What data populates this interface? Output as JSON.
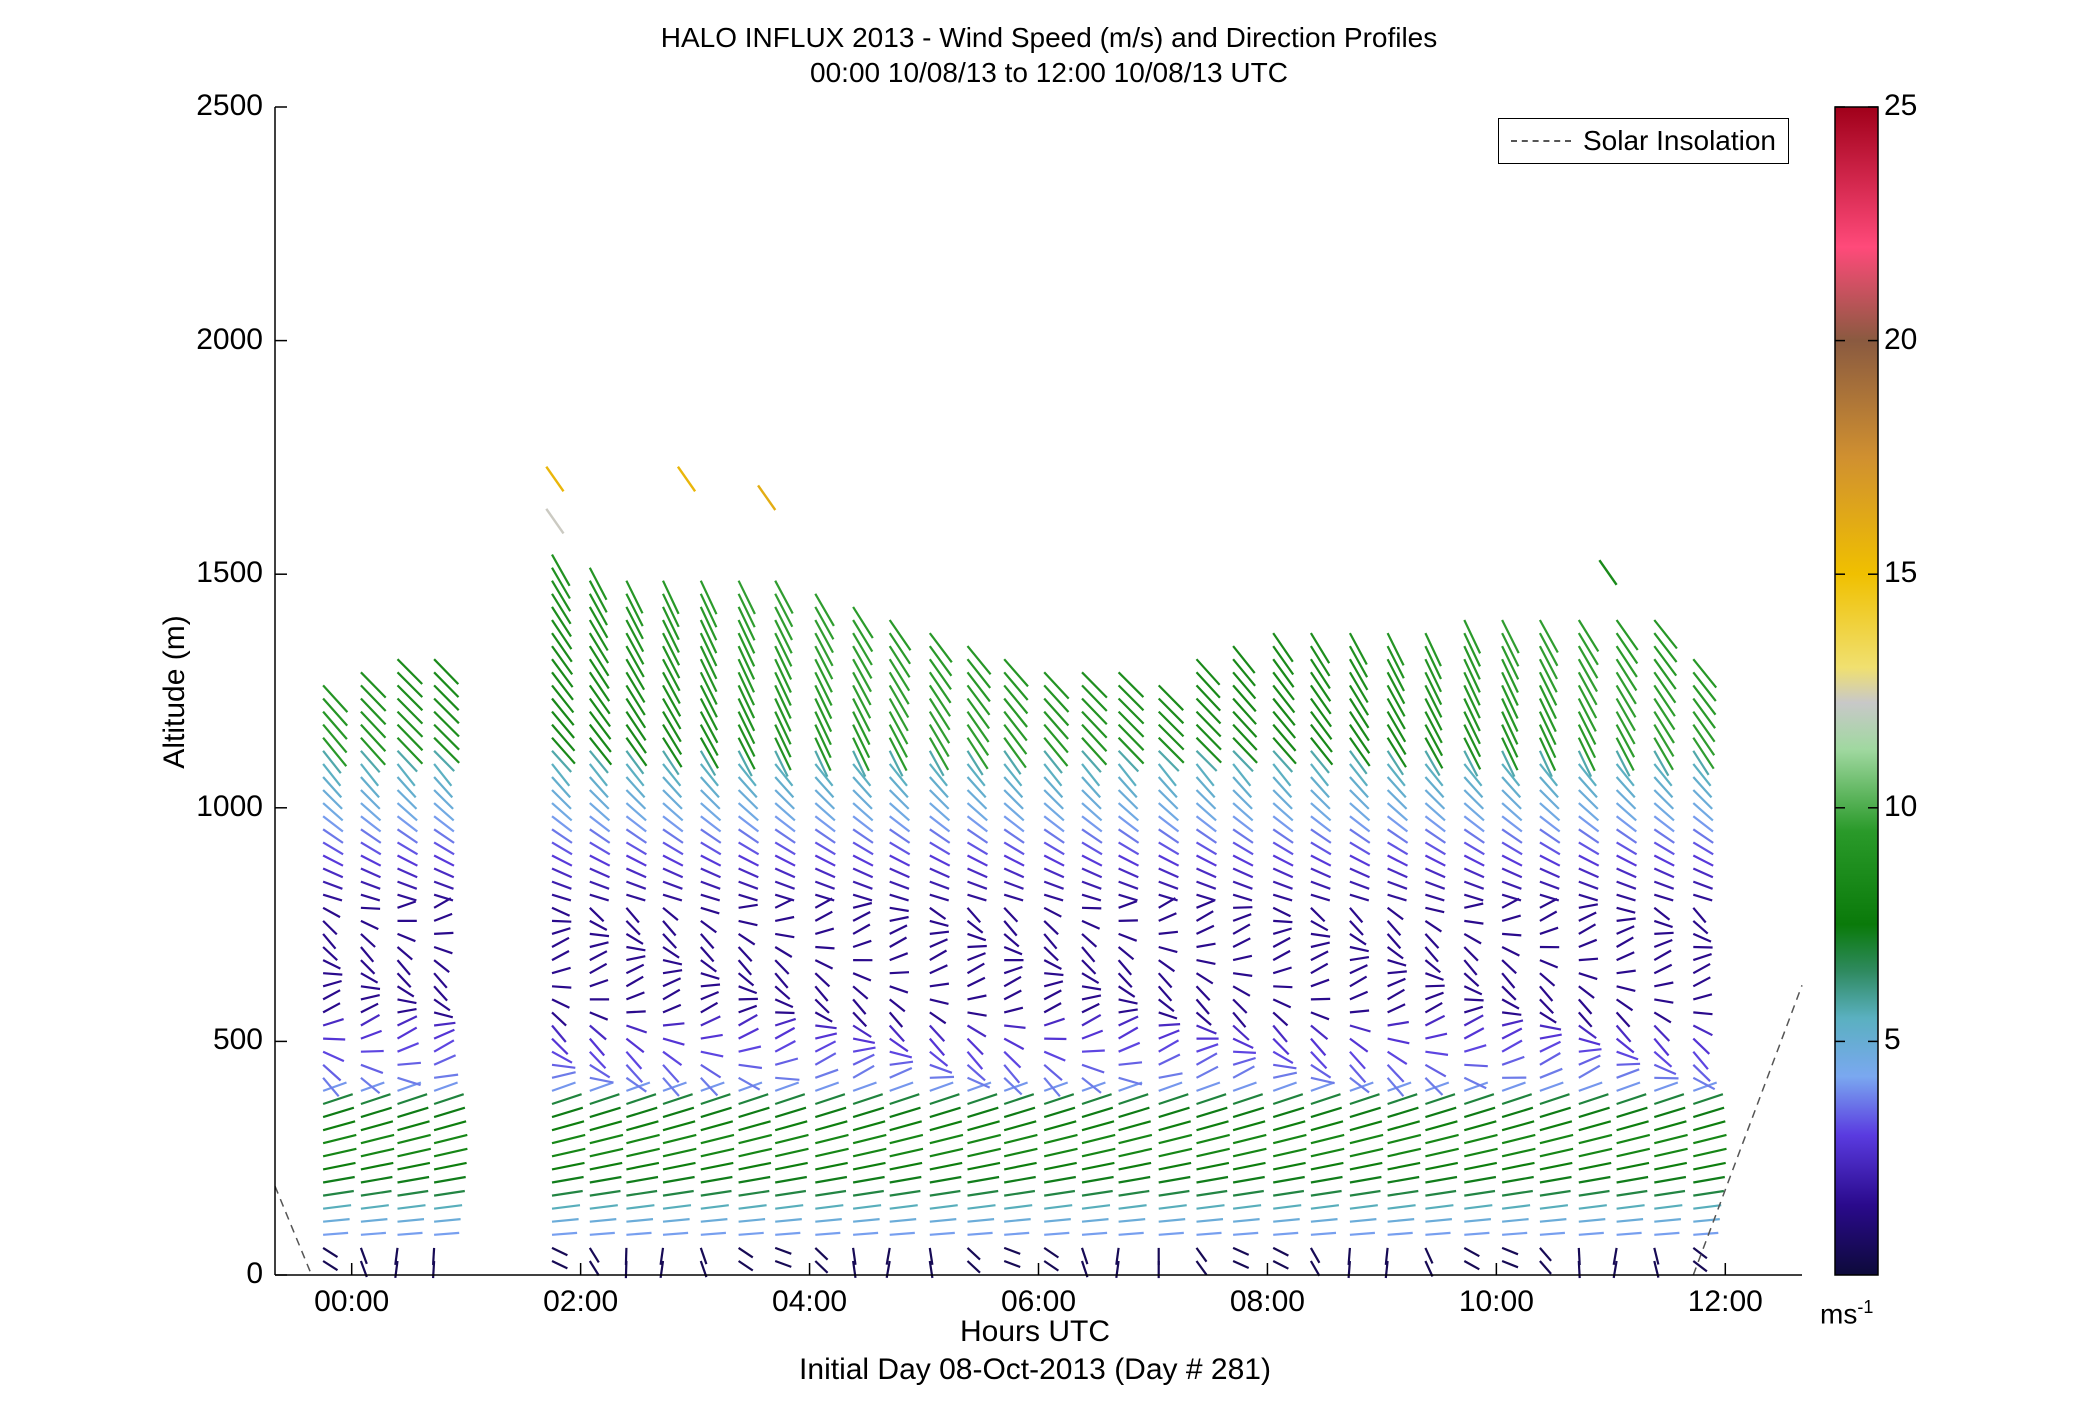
{
  "chart_data": {
    "type": "wind-barb profile (quiver)",
    "title": "HALO INFLUX 2013 - Wind Speed (m/s) and Direction Profiles",
    "subtitle": "00:00 10/08/13 to 12:00 10/08/13  UTC",
    "xlabel": "Hours UTC",
    "x_sublabel": "Initial Day 08-Oct-2013 (Day # 281)",
    "ylabel": "Altitude (m)",
    "xlim_hours": [
      -0.67,
      12.67
    ],
    "ylim": [
      0,
      2500
    ],
    "x_ticks": [
      "00:00",
      "02:00",
      "04:00",
      "06:00",
      "08:00",
      "10:00",
      "12:00"
    ],
    "x_tick_values": [
      0,
      2,
      4,
      6,
      8,
      10,
      12
    ],
    "y_ticks": [
      0,
      500,
      1000,
      1500,
      2000,
      2500
    ],
    "colorbar": {
      "range": [
        0,
        25
      ],
      "ticks": [
        5,
        10,
        15,
        20,
        25
      ],
      "unit": "ms",
      "unit_sup": "-1"
    },
    "legend": [
      {
        "name": "Solar Insolation",
        "style": "dashed",
        "color": "#555555"
      }
    ],
    "profile_times_hours": [
      -0.25,
      0.08,
      0.4,
      0.72,
      1.75,
      2.08,
      2.4,
      2.72,
      3.05,
      3.38,
      3.7,
      4.05,
      4.38,
      4.7,
      5.05,
      5.38,
      5.7,
      6.05,
      6.38,
      6.7,
      7.05,
      7.38,
      7.7,
      8.05,
      8.38,
      8.72,
      9.05,
      9.38,
      9.72,
      10.05,
      10.38,
      10.72,
      11.05,
      11.38,
      11.72
    ],
    "profile_tops_m": [
      1280,
      1300,
      1320,
      1330,
      1560,
      1520,
      1500,
      1490,
      1490,
      1490,
      1490,
      1480,
      1450,
      1410,
      1380,
      1350,
      1330,
      1310,
      1300,
      1290,
      1280,
      1320,
      1360,
      1390,
      1400,
      1400,
      1380,
      1400,
      1410,
      1410,
      1410,
      1410,
      1410,
      1410,
      1340
    ],
    "high_vectors": [
      {
        "time_hours": 1.7,
        "altitude_m": 1730,
        "speed_ms": 15.5
      },
      {
        "time_hours": 2.85,
        "altitude_m": 1730,
        "speed_ms": 15.5
      },
      {
        "time_hours": 3.55,
        "altitude_m": 1690,
        "speed_ms": 16.0
      },
      {
        "time_hours": 1.7,
        "altitude_m": 1640,
        "speed_ms": 12.3
      },
      {
        "time_hours": 10.9,
        "altitude_m": 1530,
        "speed_ms": 8.5
      }
    ],
    "wind_structure": {
      "surface_layer_speed_ms": 0.5,
      "lower_jet_altitude_m": [
        150,
        380
      ],
      "lower_jet_speed_ms": 8.5,
      "low_speed_band_altitude_m": [
        550,
        800
      ],
      "low_speed_band_speed_ms": 1.5,
      "upper_layer_speed_ms": 9.0
    },
    "solar_insolation": [
      {
        "time_hours": -0.67,
        "altitude_m": 190
      },
      {
        "time_hours": -0.35,
        "altitude_m": 0
      },
      {
        "time_hours": 11.72,
        "altitude_m": 0
      },
      {
        "time_hours": 12.67,
        "altitude_m": 620
      }
    ]
  }
}
